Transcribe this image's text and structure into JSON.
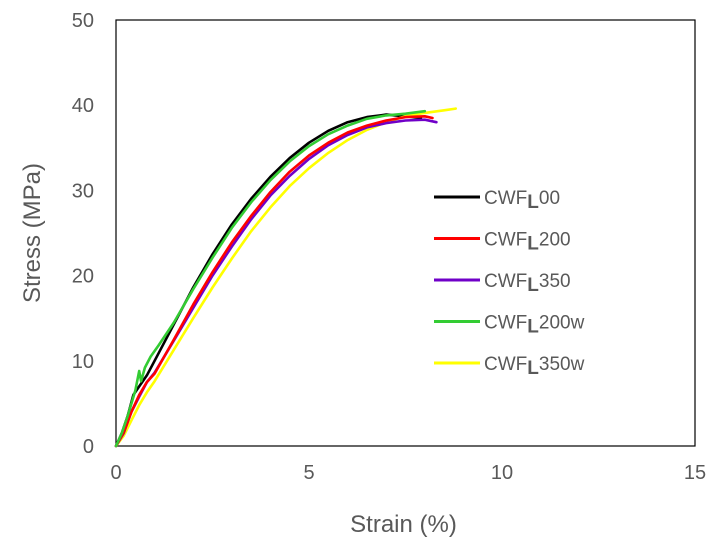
{
  "chart_data": {
    "type": "line",
    "title": "",
    "xlabel": "Strain (%)",
    "ylabel": "Stress (MPa)",
    "xlim": [
      0,
      15
    ],
    "ylim": [
      0,
      50
    ],
    "xticks": [
      0,
      5,
      10,
      15
    ],
    "yticks": [
      0,
      10,
      20,
      30,
      40,
      50
    ],
    "grid": false,
    "legend_position": "right",
    "series": [
      {
        "name": "CWF",
        "subscript": "L",
        "suffix": "00",
        "color": "#000000",
        "x": [
          0,
          0.15,
          0.3,
          0.45,
          0.6,
          0.8,
          1.0,
          1.5,
          2.0,
          2.5,
          3.0,
          3.5,
          4.0,
          4.5,
          5.0,
          5.5,
          6.0,
          6.5,
          7.0,
          7.5,
          7.9
        ],
        "y": [
          0,
          1.5,
          3.5,
          6.0,
          7.0,
          8.3,
          10.0,
          14.3,
          18.6,
          22.5,
          26.0,
          29.0,
          31.6,
          33.8,
          35.6,
          37.0,
          38.0,
          38.6,
          38.9,
          38.7,
          38.5
        ]
      },
      {
        "name": "CWF",
        "subscript": "L",
        "suffix": "200",
        "color": "#ff0000",
        "x": [
          0,
          0.2,
          0.4,
          0.6,
          0.8,
          1.0,
          1.5,
          2.0,
          2.5,
          3.0,
          3.5,
          4.0,
          4.5,
          5.0,
          5.5,
          6.0,
          6.5,
          7.0,
          7.5,
          8.0,
          8.2
        ],
        "y": [
          0,
          1.6,
          4.0,
          6.0,
          7.5,
          8.5,
          12.5,
          16.6,
          20.4,
          23.9,
          27.0,
          29.8,
          32.2,
          34.1,
          35.6,
          36.8,
          37.6,
          38.2,
          38.6,
          38.7,
          38.5
        ]
      },
      {
        "name": "CWF",
        "subscript": "L",
        "suffix": "350",
        "color": "#7000c8",
        "x": [
          0,
          0.2,
          0.4,
          0.6,
          0.8,
          1.0,
          1.5,
          2.0,
          2.5,
          3.0,
          3.5,
          4.0,
          4.5,
          5.0,
          5.5,
          6.0,
          6.5,
          7.0,
          7.5,
          8.0,
          8.3
        ],
        "y": [
          0,
          1.5,
          4.0,
          5.8,
          7.5,
          8.6,
          12.4,
          16.2,
          20.0,
          23.4,
          26.6,
          29.4,
          31.7,
          33.7,
          35.3,
          36.5,
          37.4,
          37.9,
          38.2,
          38.3,
          38.0
        ]
      },
      {
        "name": "CWF",
        "subscript": "L",
        "suffix": "200w",
        "color": "#33cc33",
        "x": [
          0,
          0.15,
          0.3,
          0.5,
          0.6,
          0.65,
          0.75,
          0.9,
          1.1,
          1.5,
          2.0,
          2.5,
          3.0,
          3.5,
          4.0,
          4.5,
          5.0,
          5.5,
          6.0,
          6.5,
          7.0,
          7.5,
          8.0
        ],
        "y": [
          0,
          1.5,
          3.5,
          6.5,
          8.8,
          7.6,
          9.2,
          10.5,
          11.8,
          14.5,
          18.4,
          22.1,
          25.6,
          28.6,
          31.2,
          33.4,
          35.2,
          36.6,
          37.6,
          38.4,
          38.8,
          39.0,
          39.3
        ]
      },
      {
        "name": "CWF",
        "subscript": "L",
        "suffix": "350w",
        "color": "#ffff00",
        "x": [
          0,
          0.2,
          0.4,
          0.6,
          0.8,
          1.0,
          1.5,
          2.0,
          2.5,
          3.0,
          3.5,
          4.0,
          4.5,
          5.0,
          5.5,
          6.0,
          6.5,
          7.0,
          7.5,
          8.0,
          8.5,
          8.8
        ],
        "y": [
          0,
          1.2,
          3.0,
          4.8,
          6.3,
          7.6,
          11.3,
          15.0,
          18.6,
          22.0,
          25.2,
          28.0,
          30.5,
          32.6,
          34.4,
          35.9,
          37.1,
          38.0,
          38.7,
          39.1,
          39.4,
          39.6
        ]
      }
    ]
  }
}
